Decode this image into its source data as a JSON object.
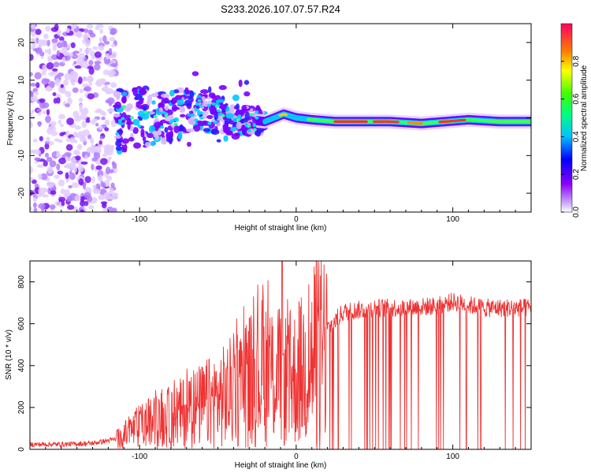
{
  "title": "S233.2026.107.07.57.R24",
  "chart_data": [
    {
      "type": "heatmap",
      "xlabel": "Height of straight line (km)",
      "ylabel": "Frequency (Hz)",
      "xlim": [
        -170,
        150
      ],
      "ylim": [
        -25,
        25
      ],
      "xticks": [
        -100,
        0,
        100
      ],
      "yticks": [
        -20,
        -10,
        0,
        10,
        20
      ],
      "ridge": [
        {
          "x": -100,
          "y": 0
        },
        {
          "x": -80,
          "y": 0.5
        },
        {
          "x": -60,
          "y": 2
        },
        {
          "x": -40,
          "y": 0
        },
        {
          "x": -20,
          "y": -1
        },
        {
          "x": -8,
          "y": 1
        },
        {
          "x": 0,
          "y": 0
        },
        {
          "x": 10,
          "y": -0.5
        },
        {
          "x": 25,
          "y": -1
        },
        {
          "x": 60,
          "y": -1
        },
        {
          "x": 80,
          "y": -1.5
        },
        {
          "x": 95,
          "y": -1
        },
        {
          "x": 110,
          "y": -0.5
        },
        {
          "x": 130,
          "y": -1
        },
        {
          "x": 150,
          "y": -1
        }
      ]
    },
    {
      "type": "line",
      "xlabel": "Height of straight line (km)",
      "ylabel": "SNR (10 * v/v)",
      "xlim": [
        -170,
        150
      ],
      "ylim": [
        0,
        900
      ],
      "xticks": [
        -100,
        0,
        100
      ],
      "yticks": [
        0,
        200,
        400,
        600,
        800
      ],
      "series": [
        {
          "name": "SNR",
          "color": "#ee3333",
          "x": [
            -170,
            -150,
            -130,
            -115,
            -100,
            -80,
            -60,
            -45,
            -30,
            -20,
            -10,
            -5,
            0,
            10,
            20,
            30,
            50,
            70,
            90,
            100,
            120,
            140,
            150
          ],
          "y": [
            25,
            25,
            30,
            50,
            120,
            170,
            230,
            280,
            370,
            420,
            380,
            360,
            380,
            470,
            580,
            660,
            680,
            680,
            690,
            710,
            680,
            680,
            680
          ]
        }
      ]
    }
  ],
  "colorbar": {
    "label": "Normalized spectral amplitude",
    "ticks": [
      "0.0",
      "0.2",
      "0.4",
      "0.6",
      "0.8"
    ],
    "range": [
      0,
      1
    ]
  }
}
